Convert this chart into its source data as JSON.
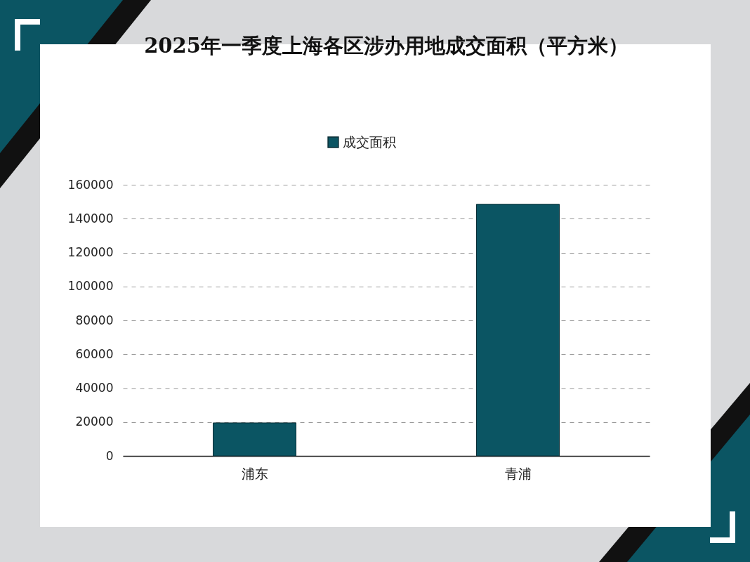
{
  "chart_data": {
    "type": "bar",
    "title": "2025年一季度上海各区涉办用地成交面积（平方米）",
    "categories": [
      "浦东",
      "青浦"
    ],
    "series": [
      {
        "name": "成交面积",
        "color": "#0b5563",
        "values": [
          19500,
          148500
        ]
      }
    ],
    "ylim": [
      0,
      160000
    ],
    "yticks": [
      0,
      20000,
      40000,
      60000,
      80000,
      100000,
      120000,
      140000,
      160000
    ],
    "grid": "y",
    "legend": "top"
  }
}
